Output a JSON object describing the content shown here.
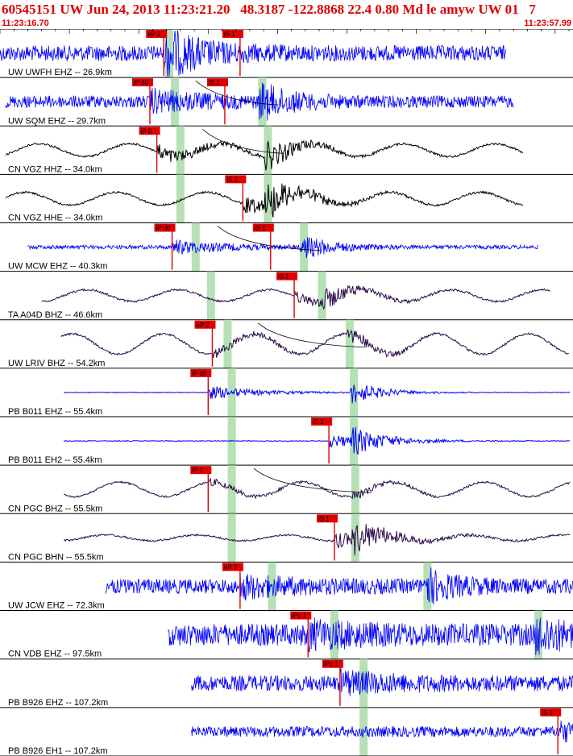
{
  "header": {
    "title": "60545151 UW Jun 24, 2013 11:23:21.20   48.3187 -122.8868 22.4 0.80 Md le amyw UW 01   7",
    "time_start": "11:23:16.70",
    "time_end": "11:23:57.99"
  },
  "colors": {
    "accent": "#e00000",
    "blue": "#0000ff",
    "black": "#000000",
    "purple": "#2a0a4a",
    "window": "#a8dca8"
  },
  "chart_data": {
    "type": "line",
    "x_range_s": [
      0,
      41.29
    ],
    "series": [
      {
        "label": "UW UWFH EHZ -- 26.9km",
        "color": "#0000ff",
        "style": "noise",
        "start": 0,
        "end": 36.5,
        "amp": 0.32,
        "eq": 0.55,
        "picks": [
          {
            "label": "eP 2",
            "t": 11.8
          },
          {
            "label": "iS 1",
            "t": 17.3
          }
        ],
        "windows": [
          12.2
        ],
        "curve": false
      },
      {
        "label": "UW SQM EHZ -- 29.7km",
        "color": "#0000ff",
        "style": "noise",
        "start": 0.4,
        "end": 37.0,
        "amp": 0.25,
        "eq": 0.6,
        "picks": [
          {
            "label": "iP d0",
            "t": 10.8
          },
          {
            "label": "iS 1",
            "t": 16.2
          }
        ],
        "windows": [
          12.6,
          18.9
        ],
        "curve": true
      },
      {
        "label": "CN VGZ HHZ -- 34.0km",
        "color": "#000000",
        "style": "broadband",
        "start": 0.4,
        "end": 37.7,
        "amp": 0.22,
        "eq": 0.55,
        "picks": [
          {
            "label": "iP 0",
            "t": 11.3
          }
        ],
        "windows": [
          13.0,
          19.3
        ],
        "curve": true
      },
      {
        "label": "CN VGZ HHE -- 34.0km",
        "color": "#000000",
        "style": "broadband",
        "start": 0.4,
        "end": 37.7,
        "amp": 0.22,
        "eq": 0.6,
        "picks": [
          {
            "label": "iS 1",
            "t": 17.5
          }
        ],
        "windows": [
          13.0,
          19.3
        ],
        "curve": false
      },
      {
        "label": "UW MCW EHZ -- 40.3km",
        "color": "#0000ff",
        "style": "noise",
        "start": 2.0,
        "end": 38.8,
        "amp": 0.08,
        "eq": 0.45,
        "picks": [
          {
            "label": "iP d0",
            "t": 12.4
          },
          {
            "label": "iS 1",
            "t": 19.5
          }
        ],
        "windows": [
          14.1,
          21.9
        ],
        "curve": true
      },
      {
        "label": "TA A04D BHZ -- 46.6km",
        "color": "#2a0a4a",
        "style": "broadband",
        "start": 3.0,
        "end": 39.7,
        "amp": 0.2,
        "eq": 0.35,
        "picks": [
          {
            "label": "iS 1",
            "t": 21.2
          }
        ],
        "windows": [
          15.2,
          23.2
        ],
        "curve": false
      },
      {
        "label": "UW LRIV BHZ -- 54.2km",
        "color": "#2a0a4a",
        "style": "broadband",
        "start": 4.4,
        "end": 41.0,
        "amp": 0.35,
        "eq": 0.3,
        "picks": [
          {
            "label": "eP 2",
            "t": 15.3
          }
        ],
        "windows": [
          16.4,
          25.2
        ],
        "curve": true
      },
      {
        "label": "PB B011 EHZ -- 55.4km",
        "color": "#0000ff",
        "style": "quiet",
        "start": 4.6,
        "end": 41.1,
        "amp": 0.015,
        "eq": 0.45,
        "picks": [
          {
            "label": "iP d0",
            "t": 15.0
          }
        ],
        "windows": [
          16.7,
          25.5
        ],
        "curve": false
      },
      {
        "label": "PB B011 EH2 -- 55.4km",
        "color": "#0000ff",
        "style": "quiet",
        "start": 4.6,
        "end": 41.1,
        "amp": 0.015,
        "eq": 0.45,
        "picks": [
          {
            "label": "iS 1",
            "t": 23.7
          }
        ],
        "windows": [
          16.7,
          25.5
        ],
        "curve": false
      },
      {
        "label": "CN PGC BHZ -- 55.5km",
        "color": "#2a0a4a",
        "style": "broadband",
        "start": 4.6,
        "end": 41.1,
        "amp": 0.25,
        "eq": 0.2,
        "picks": [
          {
            "label": "iP 1",
            "t": 15.0
          }
        ],
        "windows": [
          16.7,
          25.6
        ],
        "curve": true
      },
      {
        "label": "CN PGC BHN -- 55.5km",
        "color": "#2a0a4a",
        "style": "broadband",
        "start": 4.6,
        "end": 41.1,
        "amp": 0.1,
        "eq": 0.5,
        "picks": [
          {
            "label": "iS 1",
            "t": 24.1
          }
        ],
        "windows": [
          16.7,
          25.6
        ],
        "curve": false
      },
      {
        "label": "UW JCW EHZ -- 72.3km",
        "color": "#0000ff",
        "style": "noise",
        "start": 7.6,
        "end": 44.2,
        "amp": 0.3,
        "eq": 0.55,
        "picks": [
          {
            "label": "eP 2",
            "t": 17.3
          }
        ],
        "windows": [
          19.6,
          30.8
        ],
        "curve": false
      },
      {
        "label": "CN VDB EHZ -- 97.5km",
        "color": "#0000ff",
        "style": "noise",
        "start": 12.1,
        "end": 48.3,
        "amp": 0.45,
        "eq": 0.55,
        "picks": [
          {
            "label": "iPc 1",
            "t": 22.2
          }
        ],
        "windows": [
          24.1,
          38.8
        ],
        "curve": false
      },
      {
        "label": "PB B926 EHZ -- 107.2km",
        "color": "#0000ff",
        "style": "noise",
        "start": 13.8,
        "end": 50.0,
        "amp": 0.32,
        "eq": 0.55,
        "picks": [
          {
            "label": "iPc 1",
            "t": 24.5
          }
        ],
        "windows": [
          26.2,
          42.3
        ],
        "curve": false
      },
      {
        "label": "PB B926 EH1 -- 107.2km",
        "color": "#0000ff",
        "style": "noise",
        "start": 13.8,
        "end": 50.0,
        "amp": 0.22,
        "eq": 0.5,
        "picks": [
          {
            "label": "iS 1",
            "t": 40.2
          }
        ],
        "windows": [
          26.2,
          42.3
        ],
        "curve": false
      }
    ]
  }
}
